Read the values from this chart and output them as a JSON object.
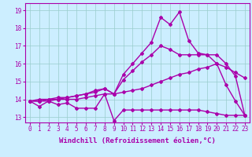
{
  "xlabel": "Windchill (Refroidissement éolien,°C)",
  "bg_color": "#cceeff",
  "line_color": "#aa00aa",
  "ylim": [
    12.7,
    19.4
  ],
  "xlim": [
    -0.5,
    23.5
  ],
  "yticks": [
    13,
    14,
    15,
    16,
    17,
    18,
    19
  ],
  "xticks": [
    0,
    1,
    2,
    3,
    4,
    5,
    6,
    7,
    8,
    9,
    10,
    11,
    12,
    13,
    14,
    15,
    16,
    17,
    18,
    19,
    20,
    21,
    22,
    23
  ],
  "line1_x": [
    0,
    1,
    2,
    3,
    4,
    5,
    6,
    7,
    8,
    9,
    10,
    11,
    12,
    13,
    14,
    15,
    16,
    17,
    18,
    19,
    20,
    21,
    22,
    23
  ],
  "line1_y": [
    13.9,
    13.6,
    13.9,
    13.7,
    13.8,
    13.5,
    13.5,
    13.5,
    14.3,
    12.8,
    13.4,
    13.4,
    13.4,
    13.4,
    13.4,
    13.4,
    13.4,
    13.4,
    13.4,
    13.3,
    13.2,
    13.1,
    13.1,
    13.1
  ],
  "line2_x": [
    0,
    1,
    2,
    3,
    4,
    5,
    6,
    7,
    8,
    9,
    10,
    11,
    12,
    13,
    14,
    15,
    16,
    17,
    18,
    19,
    20,
    21,
    22,
    23
  ],
  "line2_y": [
    13.9,
    13.9,
    13.9,
    14.0,
    14.0,
    14.0,
    14.1,
    14.2,
    14.3,
    14.3,
    14.4,
    14.5,
    14.6,
    14.8,
    15.0,
    15.2,
    15.4,
    15.5,
    15.7,
    15.8,
    16.0,
    15.8,
    15.5,
    15.2
  ],
  "line3_x": [
    0,
    1,
    2,
    3,
    4,
    5,
    6,
    7,
    8,
    9,
    10,
    11,
    12,
    13,
    14,
    15,
    16,
    17,
    18,
    19,
    20,
    21,
    22,
    23
  ],
  "line3_y": [
    13.9,
    14.0,
    14.0,
    14.1,
    14.1,
    14.2,
    14.3,
    14.4,
    14.6,
    14.3,
    15.4,
    16.0,
    16.6,
    17.2,
    18.6,
    18.2,
    18.9,
    17.3,
    16.6,
    16.5,
    16.0,
    14.8,
    13.9,
    13.1
  ],
  "line4_x": [
    0,
    1,
    2,
    3,
    4,
    5,
    6,
    7,
    8,
    9,
    10,
    11,
    12,
    13,
    14,
    15,
    16,
    17,
    18,
    19,
    20,
    21,
    22,
    23
  ],
  "line4_y": [
    13.9,
    13.9,
    14.0,
    14.0,
    14.1,
    14.2,
    14.3,
    14.5,
    14.6,
    14.3,
    15.1,
    15.6,
    16.1,
    16.5,
    17.0,
    16.8,
    16.5,
    16.5,
    16.5,
    16.5,
    16.5,
    16.0,
    15.3,
    13.1
  ],
  "grid_color": "#99cccc",
  "marker": "D",
  "marker_size": 2,
  "line_width": 1.0,
  "tick_fontsize": 5.5,
  "label_fontsize": 6.5
}
